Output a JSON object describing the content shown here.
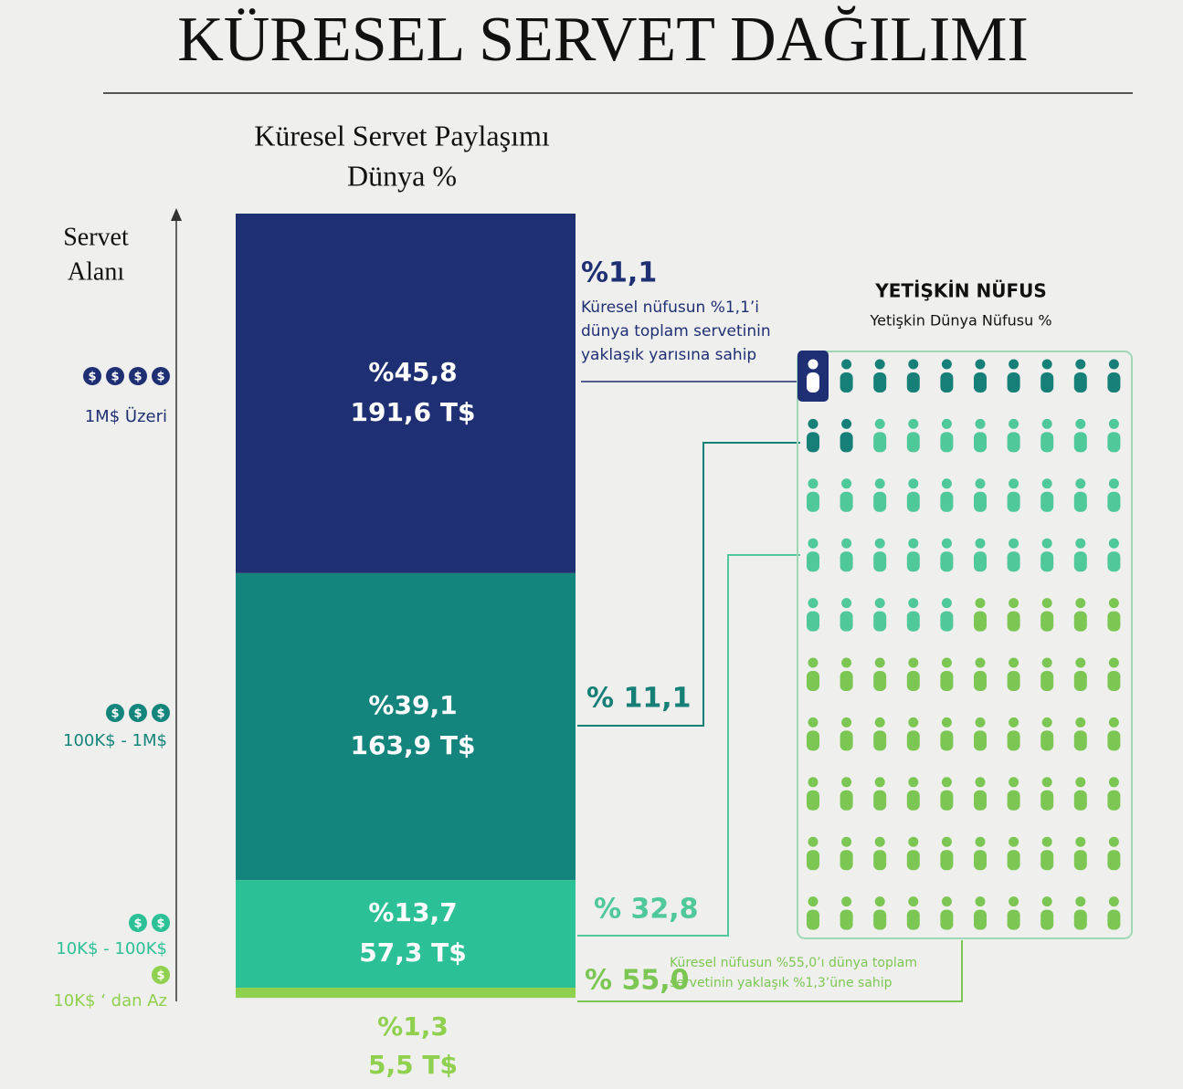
{
  "title": "KÜRESEL SERVET DAĞILIMI",
  "chart_data": [
    {
      "type": "stacked-bar",
      "title": "Küresel Servet Paylaşımı",
      "subtitle": "Dünya %",
      "y_label": [
        "Servet",
        "Alanı"
      ],
      "categories": [
        "1M$ Üzeri",
        "100K$ - 1M$",
        "10K$ - 100K$",
        "10K$ ‘ dan Az"
      ],
      "values": [
        45.8,
        39.1,
        13.7,
        1.3
      ],
      "value_labels": [
        "%45,8",
        "%39,1",
        "%13,7",
        "%1,3"
      ],
      "amounts": [
        191.6,
        163.9,
        57.3,
        5.5
      ],
      "amount_labels": [
        "191,6 T$",
        "163,9 T$",
        "57,3 T$",
        "5,5 T$"
      ],
      "colors": [
        "#1f2f74",
        "#14857c",
        "#2cc096",
        "#8fd14e"
      ],
      "ylim": [
        0,
        100
      ]
    },
    {
      "type": "waffle",
      "title": "YETİŞKİN NÜFUS",
      "subtitle": "Yetişkin Dünya  Nüfusu %",
      "categories": [
        "1M$ Üzeri",
        "100K$ - 1M$",
        "10K$ - 100K$",
        "10K$ ‘ dan Az"
      ],
      "values": [
        1.1,
        11.1,
        32.8,
        55.0
      ],
      "value_labels": [
        "%1,1",
        "% 11,1",
        "% 32,8",
        "% 55,0"
      ],
      "colors": [
        "#1f2f74",
        "#157f78",
        "#4fc89a",
        "#7cc753"
      ],
      "notes": [
        [
          "Küresel nüfusun %1,1’i",
          "dünya toplam servetinin",
          "yaklaşık yarısına sahip"
        ],
        null,
        null,
        [
          "Küresel nüfusun %55,0’ı dünya toplam",
          "servetinin yaklaşık %1,3’üne sahip"
        ]
      ]
    }
  ]
}
